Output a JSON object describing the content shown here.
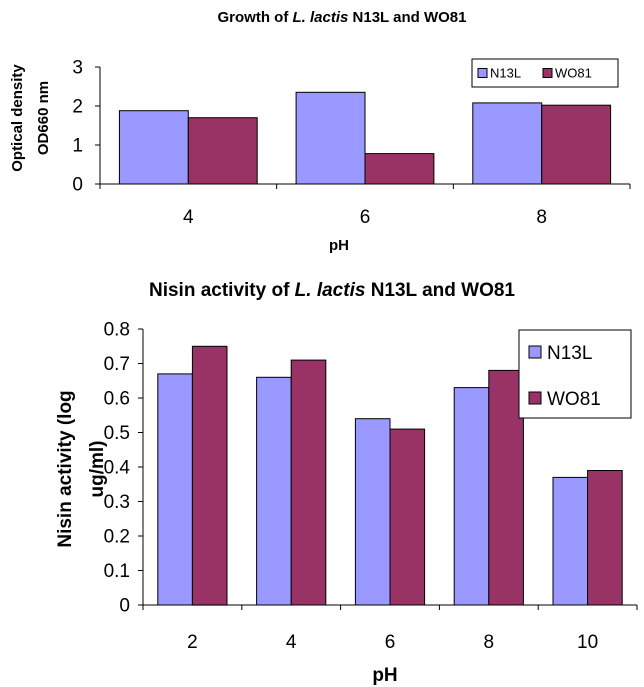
{
  "chart_data": [
    {
      "type": "bar",
      "title_parts": [
        "Growth of ",
        "L. lactis",
        " N13L and WO81"
      ],
      "xlabel": "pH",
      "ylabel_lines": [
        "Optical density",
        "OD660 nm"
      ],
      "categories": [
        "4",
        "6",
        "8"
      ],
      "series": [
        {
          "name": "N13L",
          "values": [
            1.88,
            2.35,
            2.08
          ]
        },
        {
          "name": "WO81",
          "values": [
            1.7,
            0.78,
            2.02
          ]
        }
      ],
      "ylim": [
        0,
        3
      ],
      "yticks": [
        "0",
        "1",
        "2",
        "3"
      ],
      "grid": false,
      "legend": "top-right"
    },
    {
      "type": "bar",
      "title_parts": [
        "Nisin activity of ",
        "L. lactis",
        " N13L and WO81"
      ],
      "xlabel": "pH",
      "ylabel_lines": [
        "Nisin activity (log",
        "ug/ml)"
      ],
      "categories": [
        "2",
        "4",
        "6",
        "8",
        "10"
      ],
      "series": [
        {
          "name": "N13L",
          "values": [
            0.67,
            0.66,
            0.54,
            0.63,
            0.37
          ]
        },
        {
          "name": "WO81",
          "values": [
            0.75,
            0.71,
            0.51,
            0.68,
            0.39
          ]
        }
      ],
      "ylim": [
        0,
        0.8
      ],
      "yticks": [
        "0",
        "0.1",
        "0.2",
        "0.3",
        "0.4",
        "0.5",
        "0.6",
        "0.7",
        "0.8"
      ],
      "grid": false,
      "legend": "top-right"
    }
  ],
  "colors": {
    "series1": "#9999ff",
    "series2": "#993366",
    "axis": "#000000"
  }
}
